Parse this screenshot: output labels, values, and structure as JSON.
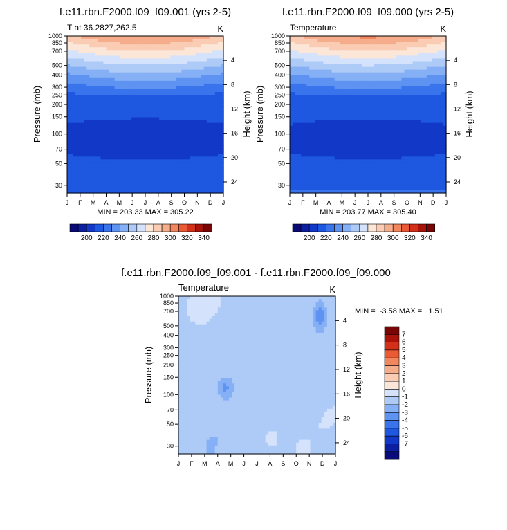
{
  "colors": {
    "temp_palette": [
      "#0a0a7a",
      "#0c1fa0",
      "#1238c8",
      "#1e57e0",
      "#3a74ec",
      "#5e93f2",
      "#86b0f6",
      "#aecbf8",
      "#d4e3fb",
      "#fbe6d8",
      "#f9ccb3",
      "#f6ad8c",
      "#f2865f",
      "#ea5a35",
      "#d23018",
      "#a81208",
      "#7a0505"
    ],
    "diff_palette": [
      "#0a0a7a",
      "#0c1fa0",
      "#1238c8",
      "#1e57e0",
      "#3a74ec",
      "#5e93f2",
      "#86b0f6",
      "#aecbf8",
      "#d4e3fb",
      "#fbe6d8",
      "#f9ccb3",
      "#f6ad8c",
      "#f2865f",
      "#ea5a35",
      "#d23018",
      "#a81208",
      "#7a0505"
    ]
  },
  "chart_data": [
    {
      "type": "heatmap",
      "title": "f.e11.rbn.F2000.f09_f09.001 (yrs 2-5)",
      "left_label": "T at 36.2827,262.5",
      "right_label": "K",
      "ylabel": "Pressure (mb)",
      "y2label": "Height (km)",
      "x_ticks": [
        "J",
        "F",
        "M",
        "A",
        "M",
        "J",
        "J",
        "A",
        "S",
        "O",
        "N",
        "D",
        "J"
      ],
      "y_ticks": [
        30,
        50,
        70,
        100,
        150,
        200,
        250,
        300,
        400,
        500,
        700,
        850,
        1000
      ],
      "y2_ticks": [
        24,
        20,
        16,
        12,
        8,
        4
      ],
      "ylim": [
        1000,
        25
      ],
      "y_scale": "log",
      "stats_label": "MIN = 203.33  MAX = 305.22",
      "min": 203.33,
      "max": 305.22,
      "colorbar_ticks": [
        200,
        220,
        240,
        260,
        280,
        300,
        320,
        340
      ]
    },
    {
      "type": "heatmap",
      "title": "f.e11.rbn.F2000.f09_f09.000 (yrs 2-5)",
      "left_label": "Temperature",
      "right_label": "K",
      "ylabel": "Pressure (mb)",
      "y2label": "Height (km)",
      "x_ticks": [
        "J",
        "F",
        "M",
        "A",
        "M",
        "J",
        "J",
        "A",
        "S",
        "O",
        "N",
        "D",
        "J"
      ],
      "y_ticks": [
        30,
        50,
        70,
        100,
        150,
        200,
        250,
        300,
        400,
        500,
        700,
        850,
        1000
      ],
      "y2_ticks": [
        24,
        20,
        16,
        12,
        8,
        4
      ],
      "ylim": [
        1000,
        25
      ],
      "y_scale": "log",
      "stats_label": "MIN = 203.77  MAX = 305.40",
      "min": 203.77,
      "max": 305.4,
      "colorbar_ticks": [
        200,
        220,
        240,
        260,
        280,
        300,
        320,
        340
      ]
    },
    {
      "type": "heatmap",
      "title": "f.e11.rbn.F2000.f09_f09.001 - f.e11.rbn.F2000.f09_f09.000",
      "left_label": "Temperature",
      "right_label": "K",
      "ylabel": "Pressure (mb)",
      "y2label": "Height (km)",
      "x_ticks": [
        "J",
        "F",
        "M",
        "A",
        "M",
        "J",
        "J",
        "A",
        "S",
        "O",
        "N",
        "D",
        "J"
      ],
      "y_ticks": [
        30,
        50,
        70,
        100,
        150,
        200,
        250,
        300,
        400,
        500,
        700,
        850,
        1000
      ],
      "y2_ticks": [
        24,
        20,
        16,
        12,
        8,
        4
      ],
      "ylim": [
        1000,
        25
      ],
      "y_scale": "log",
      "stats_label": "MIN =  -3.58 MAX =   1.51",
      "min": -3.58,
      "max": 1.51,
      "colorbar_ticks": [
        7,
        6,
        5,
        4,
        3,
        2,
        1,
        0,
        -1,
        -2,
        -3,
        -4,
        -5,
        -6,
        -7
      ]
    }
  ]
}
